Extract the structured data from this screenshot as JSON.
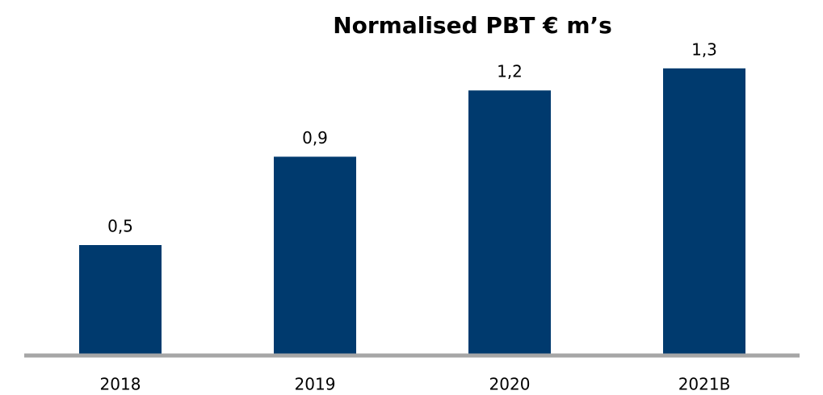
{
  "chart_data": {
    "type": "bar",
    "title": "Normalised PBT € m’s",
    "categories": [
      "2018",
      "2019",
      "2020",
      "2021B"
    ],
    "values": [
      0.5,
      0.9,
      1.2,
      1.3
    ],
    "value_labels": [
      "0,5",
      "0,9",
      "1,2",
      "1,3"
    ],
    "color": "#003a6e"
  }
}
